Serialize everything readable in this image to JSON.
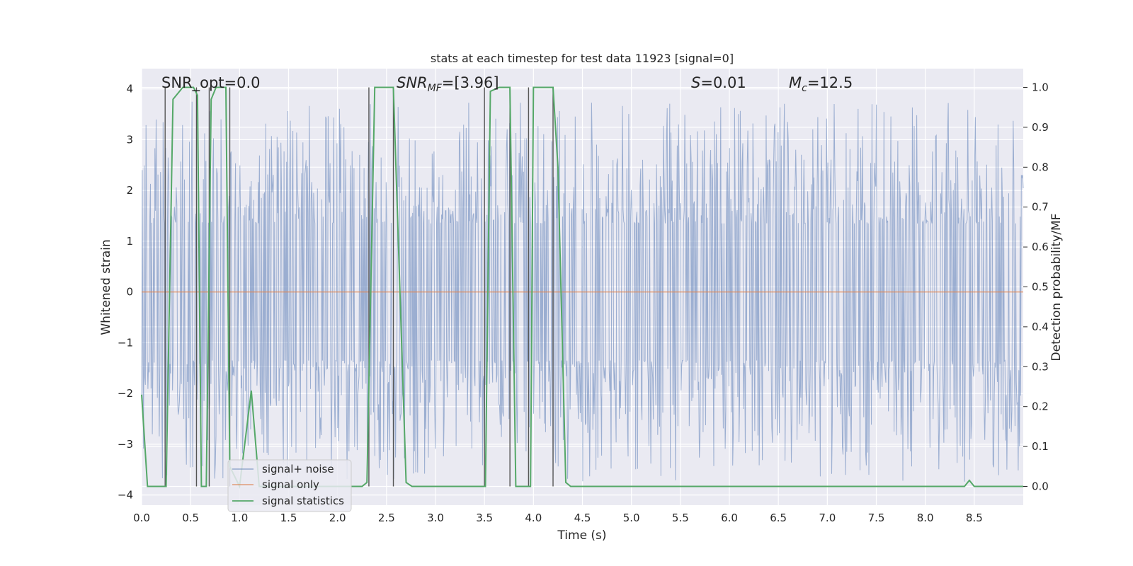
{
  "chart_data": {
    "type": "line",
    "title": "stats at each timestep for test data 11923 [signal=0]",
    "xlabel": "Time (s)",
    "ylabel": "Whitened strain",
    "y2label": "Detection probability/MF",
    "xlim": [
      0.0,
      9.0
    ],
    "ylim": [
      -4.2,
      4.4
    ],
    "y2lim": [
      -0.047,
      1.047
    ],
    "xticks": [
      0.0,
      0.5,
      1.0,
      1.5,
      2.0,
      2.5,
      3.0,
      3.5,
      4.0,
      4.5,
      5.0,
      5.5,
      6.0,
      6.5,
      7.0,
      7.5,
      8.0,
      8.5
    ],
    "xtick_labels": [
      "0.0",
      "0.5",
      "1.0",
      "1.5",
      "2.0",
      "2.5",
      "3.0",
      "3.5",
      "4.0",
      "4.5",
      "5.0",
      "5.5",
      "6.0",
      "6.5",
      "7.0",
      "7.5",
      "8.0",
      "8.5"
    ],
    "yticks": [
      -4,
      -3,
      -2,
      -1,
      0,
      1,
      2,
      3,
      4
    ],
    "ytick_labels": [
      "−4",
      "−3",
      "−2",
      "−1",
      "0",
      "1",
      "2",
      "3",
      "4"
    ],
    "y2ticks": [
      0.0,
      0.1,
      0.2,
      0.3,
      0.4,
      0.5,
      0.6,
      0.7,
      0.8,
      0.9,
      1.0
    ],
    "y2tick_labels": [
      "0.0",
      "0.1",
      "0.2",
      "0.3",
      "0.4",
      "0.5",
      "0.6",
      "0.7",
      "0.8",
      "0.9",
      "1.0"
    ],
    "annotations": {
      "snr_opt": "SNR_opt=0.0",
      "snr_mf_main": "SNR",
      "snr_mf_sub": "MF",
      "snr_mf_value": "=[3.96]",
      "s_main": "S",
      "s_value": "=0.01",
      "mc_main": "M",
      "mc_sub": "c",
      "mc_value": "=12.5"
    },
    "series": [
      {
        "name": "signal+ noise",
        "color": "#4c72b0",
        "axis": "left",
        "duration": 9.0,
        "envelope": "random noise, about ±1.5 to ±2.5, peaks up to about 4 and down to about −3.5"
      },
      {
        "name": "signal only",
        "color": "#dd8452",
        "axis": "left",
        "x": [
          0.0,
          9.0
        ],
        "y": [
          0.0,
          0.0
        ]
      },
      {
        "name": "signal statistics",
        "color": "#55a868",
        "axis": "right",
        "x": [
          0.0,
          0.06,
          0.25,
          0.32,
          0.42,
          0.53,
          0.57,
          0.61,
          0.66,
          0.71,
          0.76,
          0.86,
          0.9,
          1.0,
          1.12,
          1.2,
          1.26,
          2.25,
          2.3,
          2.38,
          2.57,
          2.7,
          2.76,
          3.51,
          3.56,
          3.65,
          3.76,
          3.82,
          3.97,
          4.0,
          4.2,
          4.25,
          4.33,
          4.38,
          4.45,
          8.4,
          8.45,
          8.5,
          8.6,
          9.0
        ],
        "y": [
          0.23,
          0.0,
          0.0,
          0.97,
          1.0,
          1.0,
          0.98,
          0.0,
          0.0,
          0.97,
          1.0,
          1.0,
          0.05,
          0.0,
          0.24,
          0.0,
          0.0,
          0.0,
          0.01,
          1.0,
          1.0,
          0.01,
          0.0,
          0.0,
          0.99,
          1.0,
          1.0,
          0.0,
          0.0,
          1.0,
          1.0,
          0.8,
          0.01,
          0.0,
          0.0,
          0.0,
          0.015,
          0.0,
          0.0,
          0.0
        ]
      }
    ],
    "vlines": [
      0.24,
      0.56,
      0.69,
      0.9,
      2.32,
      2.57,
      3.5,
      3.76,
      3.95,
      4.2
    ],
    "legend": {
      "position": "lower-left",
      "items": [
        "signal+ noise",
        "signal only",
        "signal statistics"
      ]
    }
  },
  "colors": {
    "plot_bg": "#eaeaf2",
    "grid": "#ffffff",
    "vline": "#555555",
    "text": "#262626"
  }
}
